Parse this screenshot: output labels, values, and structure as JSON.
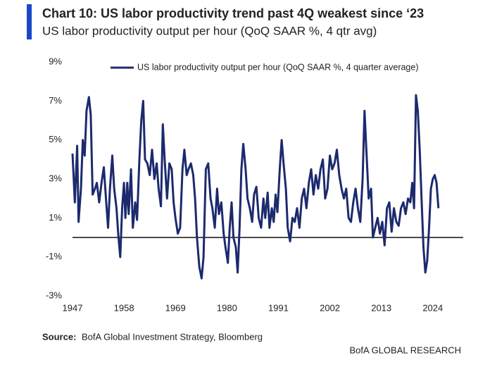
{
  "chart_data": {
    "type": "line",
    "title": "Chart 10: US labor productivity trend past 4Q weakest since ‘23",
    "subtitle": "US labor productivity output per hour (QoQ SAAR %, 4 qtr avg)",
    "source_label": "Source:",
    "source": "BofA Global Investment Strategy, Bloomberg",
    "footer": "BofA GLOBAL RESEARCH",
    "legend": "top",
    "reference_line": 0,
    "xlim": [
      1947,
      2030.5
    ],
    "xticks": [
      1947,
      1958,
      1969,
      1980,
      1991,
      2002,
      2013,
      2024
    ],
    "ylim": [
      -3,
      9
    ],
    "yticks": [
      {
        "value": -3,
        "label": "-3%"
      },
      {
        "value": -1,
        "label": "-1%"
      },
      {
        "value": 1,
        "label": "1%"
      },
      {
        "value": 3,
        "label": "3%"
      },
      {
        "value": 5,
        "label": "5%"
      },
      {
        "value": 7,
        "label": "7%"
      },
      {
        "value": 9,
        "label": "9%"
      }
    ],
    "x": [
      1947,
      1947.5,
      1948,
      1948.3,
      1948.8,
      1949.2,
      1949.6,
      1950,
      1950.5,
      1950.9,
      1951.3,
      1951.8,
      1952.2,
      1952.7,
      1953.2,
      1953.7,
      1954.2,
      1954.6,
      1955,
      1955.5,
      1955.9,
      1956.4,
      1956.8,
      1957.2,
      1957.6,
      1958,
      1958.3,
      1958.7,
      1959,
      1959.5,
      1959.9,
      1960.4,
      1960.8,
      1961.3,
      1961.7,
      1962.1,
      1962.5,
      1963,
      1963.5,
      1964,
      1964.5,
      1965,
      1965.4,
      1965.9,
      1966.3,
      1966.7,
      1967.2,
      1967.7,
      1968.2,
      1968.6,
      1969,
      1969.5,
      1970,
      1970.5,
      1970.9,
      1971.4,
      1971.8,
      1972.3,
      1972.8,
      1973.2,
      1973.6,
      1974.1,
      1974.6,
      1975,
      1975.5,
      1976,
      1976.5,
      1976.9,
      1977.4,
      1977.9,
      1978.3,
      1978.8,
      1979.3,
      1979.7,
      1980.2,
      1980.6,
      1981,
      1981.4,
      1981.9,
      1982.3,
      1982.7,
      1983.1,
      1983.5,
      1984,
      1984.4,
      1984.9,
      1985.4,
      1985.8,
      1986.3,
      1986.8,
      1987.3,
      1987.8,
      1988.2,
      1988.7,
      1989.1,
      1989.6,
      1990,
      1990.4,
      1990.8,
      1991.3,
      1991.7,
      1992.1,
      1992.6,
      1993,
      1993.5,
      1994,
      1994.5,
      1995,
      1995.5,
      1996,
      1996.5,
      1997,
      1997.5,
      1998,
      1998.5,
      1999,
      1999.5,
      2000,
      2000.5,
      2001,
      2001.5,
      2002,
      2002.5,
      2003,
      2003.5,
      2004,
      2004.5,
      2005,
      2005.5,
      2006,
      2006.5,
      2007,
      2007.5,
      2008,
      2008.5,
      2009,
      2009.4,
      2009.8,
      2010.3,
      2010.8,
      2011.2,
      2011.7,
      2012.2,
      2012.7,
      2013.2,
      2013.7,
      2014.2,
      2014.7,
      2015.2,
      2015.7,
      2016.2,
      2016.7,
      2017.2,
      2017.7,
      2018.2,
      2018.7,
      2019.2,
      2019.6,
      2020.0,
      2020.4,
      2020.8,
      2021.2,
      2021.6,
      2022.0,
      2022.4,
      2022.8,
      2023.2,
      2023.6,
      2024.0,
      2024.4,
      2024.8,
      2025.2
    ],
    "series": [
      {
        "name": "US labor productivity output per hour (QoQ SAAR %, 4 quarter average)",
        "color": "#1c2a6e",
        "values": [
          4.3,
          1.8,
          4.7,
          0.8,
          2.5,
          5.0,
          4.2,
          6.5,
          7.2,
          6.3,
          2.2,
          2.5,
          2.8,
          1.8,
          2.8,
          3.6,
          1.8,
          0.5,
          2.5,
          4.2,
          2.5,
          1.5,
          0.1,
          -1.0,
          1.5,
          2.8,
          1.0,
          2.8,
          1.2,
          3.5,
          0.5,
          1.8,
          0.9,
          4.0,
          6.0,
          7.0,
          4.0,
          3.8,
          3.2,
          4.5,
          3.0,
          3.8,
          2.5,
          1.6,
          5.8,
          4.0,
          2.0,
          3.8,
          3.5,
          1.8,
          1.0,
          0.2,
          0.5,
          3.5,
          4.5,
          3.2,
          3.5,
          3.8,
          3.2,
          2.0,
          0.0,
          -1.5,
          -2.1,
          -1.0,
          3.5,
          3.8,
          2.0,
          1.5,
          0.5,
          2.5,
          1.2,
          1.8,
          0.2,
          -0.5,
          -1.3,
          0.5,
          1.8,
          0.0,
          -0.5,
          -1.8,
          0.5,
          3.5,
          4.8,
          3.5,
          2.0,
          1.5,
          0.8,
          2.2,
          2.6,
          1.0,
          0.5,
          2.0,
          1.0,
          2.3,
          0.5,
          1.5,
          0.8,
          2.2,
          1.3,
          3.5,
          5.0,
          3.8,
          2.5,
          0.5,
          -0.2,
          1.0,
          0.8,
          1.5,
          0.5,
          2.0,
          2.5,
          1.5,
          2.8,
          3.5,
          2.2,
          3.2,
          2.5,
          3.5,
          4.0,
          2.0,
          2.5,
          4.2,
          3.5,
          3.8,
          4.5,
          3.2,
          2.5,
          2.0,
          2.5,
          1.0,
          0.8,
          1.8,
          2.5,
          1.5,
          0.8,
          3.0,
          6.5,
          4.5,
          2.0,
          2.5,
          0.0,
          0.5,
          1.0,
          0.2,
          0.8,
          -0.4,
          1.5,
          1.8,
          0.3,
          1.5,
          0.8,
          0.6,
          1.5,
          1.8,
          1.2,
          2.0,
          1.8,
          2.8,
          1.5,
          7.3,
          6.5,
          4.5,
          2.0,
          -0.5,
          -1.8,
          -1.2,
          0.5,
          2.5,
          3.0,
          3.2,
          2.8,
          1.5
        ]
      }
    ]
  }
}
